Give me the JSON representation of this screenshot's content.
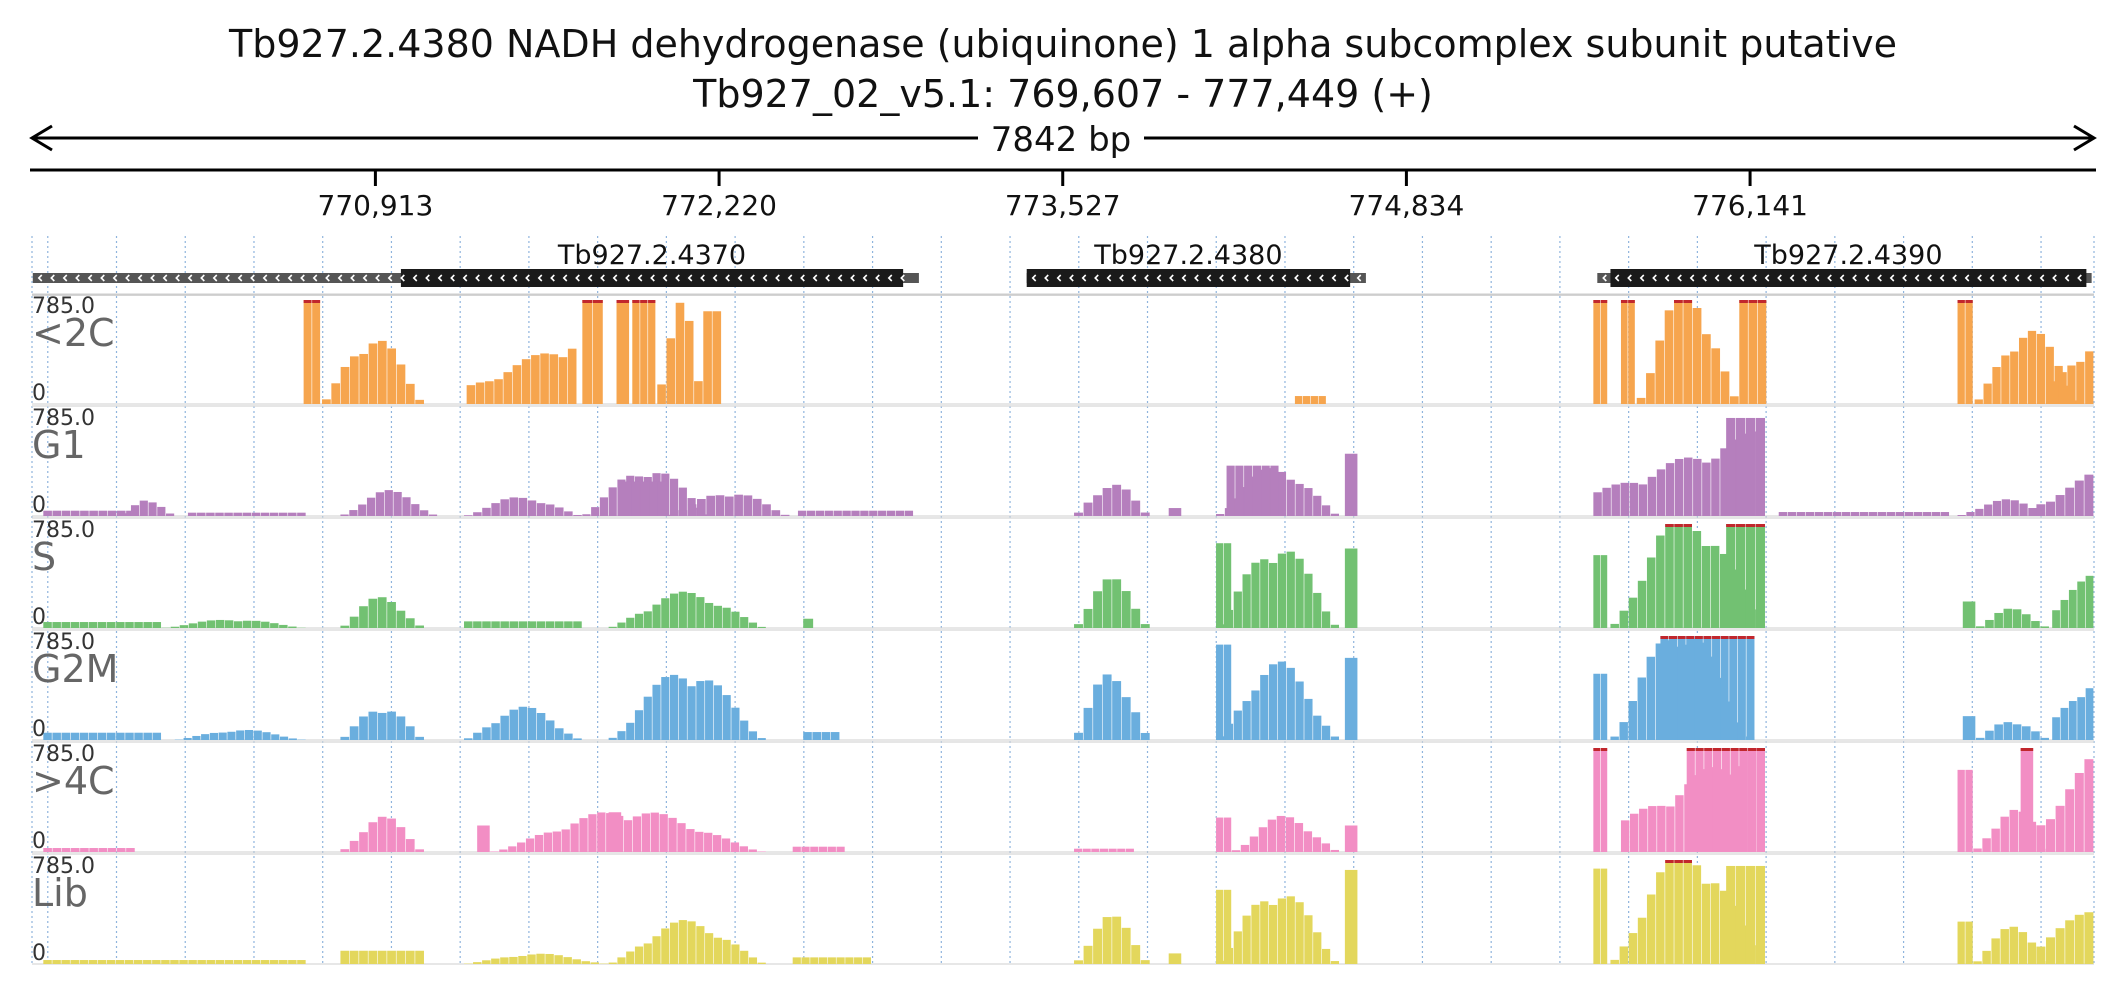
{
  "title": "Tb927.2.4380  NADH dehydrogenase (ubiquinone) 1 alpha subcomplex subunit  putative",
  "locus": "Tb927_02_v5.1: 769,607 - 777,449 (+)",
  "region_length_label": "7842 bp",
  "colors": {
    "gene": "#1a1a1a",
    "gene_thin": "#555555",
    "clip": "#c1272d",
    "tick_line": "#8fb4dd"
  },
  "chart_data": {
    "type": "area",
    "title": "Tb927.2.4380  NADH dehydrogenase (ubiquinone) 1 alpha subcomplex subunit  putative",
    "xlabel": "",
    "ylabel": "",
    "xlim": [
      769607,
      777449
    ],
    "ylim": [
      0,
      785.0
    ],
    "grid": true,
    "axis_ticks": [
      770913,
      772220,
      773527,
      774834,
      776141
    ],
    "axis_tick_labels": [
      "770,913",
      "772,220",
      "773,527",
      "774,834",
      "776,141"
    ],
    "genes": [
      {
        "name": "Tb927.2.4370",
        "strand": "-",
        "start": 769610,
        "end": 772980,
        "cds_start": 771010,
        "cds_end": 772920
      },
      {
        "name": "Tb927.2.4380",
        "strand": "-",
        "start": 773390,
        "end": 774680,
        "cds_start": 773390,
        "cds_end": 774620
      },
      {
        "name": "Tb927.2.4390",
        "strand": "-",
        "start": 775560,
        "end": 777440,
        "cds_start": 775610,
        "cds_end": 777420
      }
    ],
    "tracks": [
      {
        "name": "<2C",
        "color": "#f6a54e",
        "ymin": "0",
        "ymax": "785.0",
        "segments": [
          {
            "start": 770640,
            "end": 770705,
            "shape": "flat",
            "peak": 785
          },
          {
            "start": 770710,
            "end": 771100,
            "shape": "hump",
            "peak": 470
          },
          {
            "start": 771260,
            "end": 771680,
            "shape": "rise",
            "peak": 450
          },
          {
            "start": 771700,
            "end": 771780,
            "shape": "flat",
            "peak": 785
          },
          {
            "start": 771830,
            "end": 771880,
            "shape": "flat",
            "peak": 785
          },
          {
            "start": 771890,
            "end": 771980,
            "shape": "flat",
            "peak": 785
          },
          {
            "start": 771985,
            "end": 772160,
            "shape": "hump",
            "peak": 785
          },
          {
            "start": 772160,
            "end": 772230,
            "shape": "flat",
            "peak": 700
          },
          {
            "start": 774410,
            "end": 774530,
            "shape": "flat",
            "peak": 60
          },
          {
            "start": 775545,
            "end": 775600,
            "shape": "flat",
            "peak": 785
          },
          {
            "start": 775650,
            "end": 775705,
            "shape": "flat",
            "peak": 785
          },
          {
            "start": 775710,
            "end": 776100,
            "shape": "hump",
            "peak": 785
          },
          {
            "start": 776100,
            "end": 776205,
            "shape": "flat",
            "peak": 785
          },
          {
            "start": 776930,
            "end": 776990,
            "shape": "flat",
            "peak": 785
          },
          {
            "start": 776995,
            "end": 777400,
            "shape": "hump",
            "peak": 520
          },
          {
            "start": 777280,
            "end": 777449,
            "shape": "rise",
            "peak": 460
          }
        ]
      },
      {
        "name": "G1",
        "color": "#b57fbd",
        "ymin": "0",
        "ymax": "785.0",
        "segments": [
          {
            "start": 769650,
            "end": 770000,
            "shape": "flat",
            "peak": 40
          },
          {
            "start": 769950,
            "end": 770150,
            "shape": "hump",
            "peak": 120
          },
          {
            "start": 770200,
            "end": 770650,
            "shape": "flat",
            "peak": 25
          },
          {
            "start": 770780,
            "end": 771150,
            "shape": "hump",
            "peak": 170
          },
          {
            "start": 771250,
            "end": 771700,
            "shape": "hump",
            "peak": 130
          },
          {
            "start": 771700,
            "end": 772200,
            "shape": "hump",
            "peak": 330
          },
          {
            "start": 771855,
            "end": 772020,
            "shape": "flat",
            "peak": 260
          },
          {
            "start": 772030,
            "end": 772490,
            "shape": "hump",
            "peak": 170
          },
          {
            "start": 772520,
            "end": 772960,
            "shape": "flat",
            "peak": 40
          },
          {
            "start": 773570,
            "end": 773860,
            "shape": "hump",
            "peak": 230
          },
          {
            "start": 773930,
            "end": 773980,
            "shape": "flat",
            "peak": 60
          },
          {
            "start": 774110,
            "end": 774580,
            "shape": "hump",
            "peak": 330
          },
          {
            "start": 774150,
            "end": 774350,
            "shape": "flat",
            "peak": 380
          },
          {
            "start": 774600,
            "end": 774650,
            "shape": "flat",
            "peak": 470
          },
          {
            "start": 775545,
            "end": 776200,
            "shape": "rise",
            "peak": 600
          },
          {
            "start": 776050,
            "end": 776200,
            "shape": "flat",
            "peak": 740
          },
          {
            "start": 776250,
            "end": 776900,
            "shape": "flat",
            "peak": 30
          },
          {
            "start": 776930,
            "end": 777300,
            "shape": "hump",
            "peak": 110
          },
          {
            "start": 777230,
            "end": 777449,
            "shape": "rise",
            "peak": 290
          }
        ]
      },
      {
        "name": "S",
        "color": "#72c172",
        "ymin": "0",
        "ymax": "785.0",
        "segments": [
          {
            "start": 769650,
            "end": 770100,
            "shape": "flat",
            "peak": 45
          },
          {
            "start": 770100,
            "end": 770650,
            "shape": "hump",
            "peak": 60
          },
          {
            "start": 770780,
            "end": 771100,
            "shape": "hump",
            "peak": 210
          },
          {
            "start": 771250,
            "end": 771700,
            "shape": "flat",
            "peak": 50
          },
          {
            "start": 771800,
            "end": 772400,
            "shape": "hump",
            "peak": 240
          },
          {
            "start": 772540,
            "end": 772580,
            "shape": "flat",
            "peak": 70
          },
          {
            "start": 773570,
            "end": 773860,
            "shape": "hump",
            "peak": 330
          },
          {
            "start": 774110,
            "end": 774580,
            "shape": "hump",
            "peak": 580
          },
          {
            "start": 774110,
            "end": 774170,
            "shape": "flat",
            "peak": 640
          },
          {
            "start": 774600,
            "end": 774650,
            "shape": "flat",
            "peak": 600
          },
          {
            "start": 775545,
            "end": 775600,
            "shape": "flat",
            "peak": 550
          },
          {
            "start": 775610,
            "end": 776200,
            "shape": "hump",
            "peak": 785
          },
          {
            "start": 776050,
            "end": 776200,
            "shape": "flat",
            "peak": 785
          },
          {
            "start": 776950,
            "end": 777000,
            "shape": "flat",
            "peak": 200
          },
          {
            "start": 777000,
            "end": 777280,
            "shape": "hump",
            "peak": 130
          },
          {
            "start": 777290,
            "end": 777449,
            "shape": "rise",
            "peak": 400
          }
        ]
      },
      {
        "name": "G2M",
        "color": "#6aaede",
        "ymin": "0",
        "ymax": "785.0",
        "segments": [
          {
            "start": 769650,
            "end": 770100,
            "shape": "flat",
            "peak": 55
          },
          {
            "start": 770150,
            "end": 770650,
            "shape": "hump",
            "peak": 70
          },
          {
            "start": 770780,
            "end": 771100,
            "shape": "hump",
            "peak": 240
          },
          {
            "start": 771250,
            "end": 771700,
            "shape": "hump",
            "peak": 220
          },
          {
            "start": 771800,
            "end": 772400,
            "shape": "hump",
            "peak": 480
          },
          {
            "start": 772540,
            "end": 772680,
            "shape": "flat",
            "peak": 60
          },
          {
            "start": 773570,
            "end": 773860,
            "shape": "hump",
            "peak": 480
          },
          {
            "start": 774110,
            "end": 774580,
            "shape": "hump",
            "peak": 520
          },
          {
            "start": 774110,
            "end": 774170,
            "shape": "flat",
            "peak": 720
          },
          {
            "start": 774600,
            "end": 774650,
            "shape": "flat",
            "peak": 620
          },
          {
            "start": 775545,
            "end": 775600,
            "shape": "flat",
            "peak": 500
          },
          {
            "start": 775610,
            "end": 776160,
            "shape": "hump",
            "peak": 785
          },
          {
            "start": 775800,
            "end": 776160,
            "shape": "flat",
            "peak": 785
          },
          {
            "start": 776950,
            "end": 777000,
            "shape": "flat",
            "peak": 180
          },
          {
            "start": 777000,
            "end": 777280,
            "shape": "hump",
            "peak": 140
          },
          {
            "start": 777290,
            "end": 777449,
            "shape": "rise",
            "peak": 460
          }
        ]
      },
      {
        "name": ">4C",
        "color": "#f28ec4",
        "ymin": "0",
        "ymax": "785.0",
        "segments": [
          {
            "start": 769650,
            "end": 770000,
            "shape": "flat",
            "peak": 30
          },
          {
            "start": 770780,
            "end": 771100,
            "shape": "hump",
            "peak": 240
          },
          {
            "start": 771300,
            "end": 771350,
            "shape": "flat",
            "peak": 200
          },
          {
            "start": 771350,
            "end": 772400,
            "shape": "hump",
            "peak": 280
          },
          {
            "start": 771800,
            "end": 771850,
            "shape": "flat",
            "peak": 300
          },
          {
            "start": 772500,
            "end": 772700,
            "shape": "flat",
            "peak": 40
          },
          {
            "start": 773570,
            "end": 773800,
            "shape": "flat",
            "peak": 25
          },
          {
            "start": 774110,
            "end": 774170,
            "shape": "flat",
            "peak": 260
          },
          {
            "start": 774170,
            "end": 774580,
            "shape": "hump",
            "peak": 240
          },
          {
            "start": 774600,
            "end": 774650,
            "shape": "flat",
            "peak": 200
          },
          {
            "start": 775545,
            "end": 775600,
            "shape": "flat",
            "peak": 785
          },
          {
            "start": 775650,
            "end": 776200,
            "shape": "rise",
            "peak": 785
          },
          {
            "start": 775900,
            "end": 776200,
            "shape": "flat",
            "peak": 785
          },
          {
            "start": 776930,
            "end": 776990,
            "shape": "flat",
            "peak": 620
          },
          {
            "start": 776990,
            "end": 777300,
            "shape": "hump",
            "peak": 290
          },
          {
            "start": 777170,
            "end": 777220,
            "shape": "flat",
            "peak": 785
          },
          {
            "start": 777230,
            "end": 777449,
            "shape": "rise",
            "peak": 650
          }
        ]
      },
      {
        "name": "Lib",
        "color": "#e3d75c",
        "ymin": "0",
        "ymax": "785.0",
        "segments": [
          {
            "start": 769650,
            "end": 770650,
            "shape": "flat",
            "peak": 30
          },
          {
            "start": 770780,
            "end": 771100,
            "shape": "flat",
            "peak": 100
          },
          {
            "start": 771250,
            "end": 771800,
            "shape": "hump",
            "peak": 70
          },
          {
            "start": 771800,
            "end": 772400,
            "shape": "hump",
            "peak": 290
          },
          {
            "start": 772500,
            "end": 772800,
            "shape": "flat",
            "peak": 50
          },
          {
            "start": 773570,
            "end": 773860,
            "shape": "hump",
            "peak": 320
          },
          {
            "start": 773930,
            "end": 773980,
            "shape": "flat",
            "peak": 80
          },
          {
            "start": 774110,
            "end": 774580,
            "shape": "hump",
            "peak": 520
          },
          {
            "start": 774110,
            "end": 774170,
            "shape": "flat",
            "peak": 560
          },
          {
            "start": 774600,
            "end": 774650,
            "shape": "flat",
            "peak": 710
          },
          {
            "start": 775545,
            "end": 775600,
            "shape": "flat",
            "peak": 720
          },
          {
            "start": 775610,
            "end": 776200,
            "shape": "hump",
            "peak": 785
          },
          {
            "start": 776050,
            "end": 776200,
            "shape": "flat",
            "peak": 740
          },
          {
            "start": 776930,
            "end": 776990,
            "shape": "flat",
            "peak": 320
          },
          {
            "start": 776990,
            "end": 777300,
            "shape": "hump",
            "peak": 250
          },
          {
            "start": 777230,
            "end": 777449,
            "shape": "rise",
            "peak": 420
          }
        ]
      }
    ]
  }
}
